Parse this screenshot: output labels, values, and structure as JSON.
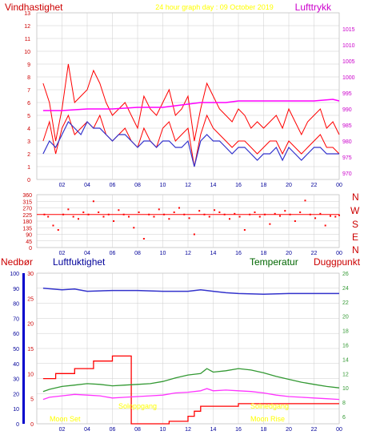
{
  "header": {
    "left_label": "Vindhastighet",
    "title": "24 hour graph day : 09 October 2019",
    "right_label": "Lufttrykk"
  },
  "bottom_header": {
    "label_1": "Nedbør",
    "label_2": "Luftfuktighet",
    "label_3": "Temperatur",
    "label_4": "Duggpunkt"
  },
  "compass": [
    "N",
    "W",
    "S",
    "E",
    "N"
  ],
  "annotations": {
    "moon_set": "Moon Set",
    "sunrise": "Soloppgang",
    "sunset": "Solnedgang",
    "moon_rise": "Moon Rise"
  },
  "colors": {
    "wind": "#ff0000",
    "gust": "#ff0000",
    "avg_wind": "#3333cc",
    "pressure": "#ff00ff",
    "direction": "#ff0000",
    "rain": "#ff0000",
    "humidity": "#3333cc",
    "temperature": "#339933",
    "dewpoint": "#ff33ff",
    "title": "#ffff00",
    "left_axis": "#cc0000",
    "right_axis": "#cc00cc",
    "panel_bg": "#ffffff",
    "grid": "#cccccc"
  },
  "chart_data": [
    {
      "type": "line",
      "name": "wind-and-pressure",
      "x_ticks": [
        "02",
        "04",
        "06",
        "08",
        "10",
        "12",
        "14",
        "16",
        "18",
        "20",
        "22",
        "00"
      ],
      "y_left_ticks": [
        0,
        1,
        2,
        3,
        4,
        5,
        6,
        7,
        8,
        9,
        10,
        11,
        12,
        13
      ],
      "y_right_ticks": [
        970,
        975,
        980,
        985,
        990,
        995,
        1000,
        1005,
        1010,
        1015
      ],
      "y_left_range": [
        0,
        13
      ],
      "y_right_range": [
        968,
        1020
      ],
      "x_range": [
        0,
        24
      ],
      "series": [
        {
          "axis": "left",
          "style": "gust",
          "x": [
            0.5,
            1.0,
            1.5,
            2.0,
            2.5,
            3.0,
            3.5,
            4.0,
            4.5,
            5.0,
            5.5,
            6.0,
            6.5,
            7.0,
            7.5,
            8.0,
            8.5,
            9.0,
            9.5,
            10.0,
            10.5,
            11.0,
            11.5,
            12.0,
            12.5,
            13.0,
            13.5,
            14.0,
            14.5,
            15.0,
            15.5,
            16.0,
            16.5,
            17.0,
            17.5,
            18.0,
            18.5,
            19.0,
            19.5,
            20.0,
            20.5,
            21.0,
            21.5,
            22.0,
            22.5,
            23.0,
            23.5,
            24.0
          ],
          "y": [
            7.5,
            6.0,
            3.0,
            5.5,
            9.0,
            6.0,
            6.5,
            7.0,
            8.5,
            7.5,
            6.0,
            5.0,
            5.5,
            6.0,
            5.0,
            4.0,
            6.5,
            5.5,
            5.0,
            6.0,
            7.0,
            5.0,
            5.5,
            6.5,
            3.0,
            5.5,
            7.5,
            6.5,
            5.5,
            5.0,
            4.5,
            5.5,
            5.0,
            4.0,
            4.5,
            4.0,
            4.5,
            5.0,
            4.0,
            5.5,
            4.5,
            3.5,
            4.5,
            5.0,
            5.5,
            4.0,
            4.5,
            3.5
          ]
        },
        {
          "axis": "left",
          "style": "wind",
          "x": [
            0.5,
            1.0,
            1.5,
            2.0,
            2.5,
            3.0,
            3.5,
            4.0,
            4.5,
            5.0,
            5.5,
            6.0,
            6.5,
            7.0,
            7.5,
            8.0,
            8.5,
            9.0,
            9.5,
            10.0,
            10.5,
            11.0,
            11.5,
            12.0,
            12.5,
            13.0,
            13.5,
            14.0,
            14.5,
            15.0,
            15.5,
            16.0,
            16.5,
            17.0,
            17.5,
            18.0,
            18.5,
            19.0,
            19.5,
            20.0,
            20.5,
            21.0,
            21.5,
            22.0,
            22.5,
            23.0,
            23.5,
            24.0
          ],
          "y": [
            3.0,
            4.5,
            2.0,
            4.0,
            5.0,
            3.5,
            4.0,
            4.5,
            4.0,
            5.0,
            3.5,
            3.0,
            3.5,
            4.0,
            3.0,
            2.5,
            4.0,
            3.0,
            2.5,
            4.0,
            4.5,
            3.0,
            3.5,
            4.0,
            1.0,
            3.5,
            5.0,
            4.0,
            3.5,
            3.0,
            2.5,
            3.0,
            3.0,
            2.5,
            2.0,
            2.5,
            3.0,
            3.0,
            2.0,
            3.0,
            2.5,
            2.0,
            2.5,
            3.0,
            3.5,
            2.5,
            2.5,
            2.0
          ]
        },
        {
          "axis": "left",
          "style": "avg_wind",
          "x": [
            0.5,
            1.0,
            1.5,
            2.0,
            2.5,
            3.0,
            3.5,
            4.0,
            4.5,
            5.0,
            5.5,
            6.0,
            6.5,
            7.0,
            7.5,
            8.0,
            8.5,
            9.0,
            9.5,
            10.0,
            10.5,
            11.0,
            11.5,
            12.0,
            12.5,
            13.0,
            13.5,
            14.0,
            14.5,
            15.0,
            15.5,
            16.0,
            16.5,
            17.0,
            17.5,
            18.0,
            18.5,
            19.0,
            19.5,
            20.0,
            20.5,
            21.0,
            21.5,
            22.0,
            22.5,
            23.0,
            23.5,
            24.0
          ],
          "y": [
            2.0,
            3.0,
            2.5,
            3.5,
            4.5,
            4.0,
            3.5,
            4.5,
            4.0,
            4.0,
            3.5,
            3.0,
            3.5,
            3.5,
            3.0,
            2.5,
            3.0,
            3.0,
            2.5,
            3.0,
            3.0,
            2.5,
            2.5,
            3.0,
            1.0,
            3.0,
            3.5,
            3.0,
            3.0,
            2.5,
            2.0,
            2.5,
            2.5,
            2.0,
            1.5,
            2.0,
            2.0,
            2.5,
            1.5,
            2.5,
            2.0,
            1.5,
            2.0,
            2.5,
            2.5,
            2.0,
            2.0,
            2.0
          ]
        },
        {
          "axis": "right",
          "style": "pressure",
          "x": [
            0.5,
            2,
            4,
            6,
            8,
            10,
            11,
            12,
            13,
            14,
            15,
            16,
            18,
            20,
            22,
            23.5,
            24
          ],
          "y": [
            989.5,
            989.5,
            990,
            990,
            990.5,
            990.5,
            991,
            991.5,
            992,
            992,
            992,
            992.5,
            992.5,
            992.5,
            992.5,
            993,
            992.5
          ]
        }
      ]
    },
    {
      "type": "scatter",
      "name": "wind-direction",
      "x_ticks": [
        "02",
        "04",
        "06",
        "08",
        "10",
        "12",
        "14",
        "16",
        "18",
        "20",
        "22",
        "00"
      ],
      "y_ticks": [
        0,
        45,
        90,
        135,
        180,
        225,
        270,
        315,
        360
      ],
      "y_tick_labels": [
        "0",
        "45",
        "90",
        "135",
        "180",
        "225",
        "270",
        "315",
        "360"
      ],
      "y_range": [
        0,
        360
      ],
      "x_range": [
        0,
        24
      ],
      "points": [
        [
          0.6,
          225
        ],
        [
          0.9,
          210
        ],
        [
          1.3,
          150
        ],
        [
          1.7,
          120
        ],
        [
          2.1,
          225
        ],
        [
          2.5,
          260
        ],
        [
          2.9,
          210
        ],
        [
          3.3,
          195
        ],
        [
          3.7,
          240
        ],
        [
          4.1,
          225
        ],
        [
          4.5,
          315
        ],
        [
          4.9,
          240
        ],
        [
          5.3,
          210
        ],
        [
          5.7,
          225
        ],
        [
          6.1,
          180
        ],
        [
          6.5,
          255
        ],
        [
          6.9,
          225
        ],
        [
          7.3,
          210
        ],
        [
          7.7,
          135
        ],
        [
          8.1,
          240
        ],
        [
          8.5,
          60
        ],
        [
          8.9,
          225
        ],
        [
          9.3,
          210
        ],
        [
          9.7,
          260
        ],
        [
          10.1,
          225
        ],
        [
          10.5,
          195
        ],
        [
          10.9,
          240
        ],
        [
          11.3,
          270
        ],
        [
          11.7,
          225
        ],
        [
          12.1,
          200
        ],
        [
          12.5,
          90
        ],
        [
          12.9,
          250
        ],
        [
          13.3,
          225
        ],
        [
          13.7,
          210
        ],
        [
          14.1,
          255
        ],
        [
          14.5,
          240
        ],
        [
          14.9,
          225
        ],
        [
          15.3,
          195
        ],
        [
          15.7,
          230
        ],
        [
          16.1,
          210
        ],
        [
          16.5,
          120
        ],
        [
          16.9,
          225
        ],
        [
          17.3,
          240
        ],
        [
          17.7,
          210
        ],
        [
          18.1,
          225
        ],
        [
          18.5,
          160
        ],
        [
          18.9,
          230
        ],
        [
          19.3,
          215
        ],
        [
          19.7,
          250
        ],
        [
          20.1,
          225
        ],
        [
          20.5,
          180
        ],
        [
          20.9,
          240
        ],
        [
          21.3,
          320
        ],
        [
          21.7,
          225
        ],
        [
          22.1,
          200
        ],
        [
          22.5,
          230
        ],
        [
          22.9,
          150
        ],
        [
          23.3,
          215
        ],
        [
          23.7,
          210
        ],
        [
          24.0,
          220
        ]
      ]
    },
    {
      "type": "line",
      "name": "rain-humidity-temperature",
      "x_ticks": [
        "02",
        "04",
        "06",
        "08",
        "10",
        "12",
        "14",
        "16",
        "18",
        "20",
        "22",
        "00"
      ],
      "y_rain_ticks": [
        0,
        10,
        20,
        30,
        40,
        50,
        60,
        70,
        80,
        90,
        100
      ],
      "y_hum_ticks": [
        0,
        5,
        10,
        15,
        20,
        25,
        30
      ],
      "y_temp_ticks": [
        6,
        8,
        10,
        12,
        14,
        16,
        18,
        20,
        22,
        24,
        26
      ],
      "y_rain_range": [
        0,
        100
      ],
      "y_hum_range": [
        0,
        30
      ],
      "y_temp_range": [
        5,
        26
      ],
      "x_range": [
        0,
        24
      ],
      "series": [
        {
          "axis": "hum",
          "style": "rain",
          "step": true,
          "x": [
            0.5,
            1.5,
            3.0,
            4.5,
            6.0,
            7.5,
            7.5,
            10.5,
            10.5,
            11.5,
            12.0,
            12.5,
            13.0,
            16.0,
            18.0,
            24.0
          ],
          "y": [
            9.0,
            10.0,
            11.0,
            12.5,
            13.5,
            13.5,
            0,
            0,
            0.5,
            0.5,
            1.5,
            2.5,
            3.5,
            4.0,
            4.0,
            4.0
          ]
        },
        {
          "axis": "rain",
          "style": "humidity",
          "x": [
            0.5,
            2,
            3,
            4,
            6,
            8,
            10,
            12,
            13,
            14,
            15,
            16,
            18,
            20,
            22,
            24
          ],
          "y": [
            90,
            89,
            89.5,
            88,
            88.5,
            88.5,
            88,
            88,
            89,
            88,
            87,
            86.5,
            86,
            86.5,
            86.5,
            86.5
          ]
        },
        {
          "axis": "temp",
          "style": "temperature",
          "x": [
            0.5,
            1.0,
            2.0,
            3.0,
            4.0,
            5.0,
            6.0,
            7.0,
            8.0,
            9.0,
            10.0,
            11.0,
            12.0,
            13.0,
            13.5,
            14.0,
            15.0,
            16.0,
            17.0,
            18.0,
            19.0,
            20.0,
            21.0,
            22.0,
            23.0,
            24.0
          ],
          "y": [
            9.5,
            9.8,
            10.2,
            10.4,
            10.6,
            10.5,
            10.3,
            10.4,
            10.5,
            10.6,
            10.9,
            11.4,
            11.8,
            12.0,
            12.7,
            12.2,
            12.4,
            12.7,
            12.5,
            12.1,
            11.6,
            11.2,
            10.8,
            10.5,
            10.2,
            10.0
          ]
        },
        {
          "axis": "temp",
          "style": "dewpoint",
          "x": [
            0.5,
            1.0,
            2.0,
            3.0,
            4.0,
            5.0,
            6.0,
            7.0,
            8.0,
            9.0,
            10.0,
            11.0,
            12.0,
            13.0,
            13.5,
            14.0,
            15.0,
            16.0,
            17.0,
            18.0,
            19.0,
            20.0,
            21.0,
            22.0,
            23.0,
            24.0
          ],
          "y": [
            8.4,
            8.7,
            8.9,
            9.1,
            9.0,
            8.9,
            8.6,
            8.7,
            8.8,
            8.9,
            9.0,
            9.3,
            9.4,
            9.6,
            9.9,
            9.6,
            9.7,
            9.6,
            9.5,
            9.3,
            9.0,
            8.8,
            8.7,
            8.6,
            8.5,
            8.4
          ]
        }
      ]
    }
  ]
}
